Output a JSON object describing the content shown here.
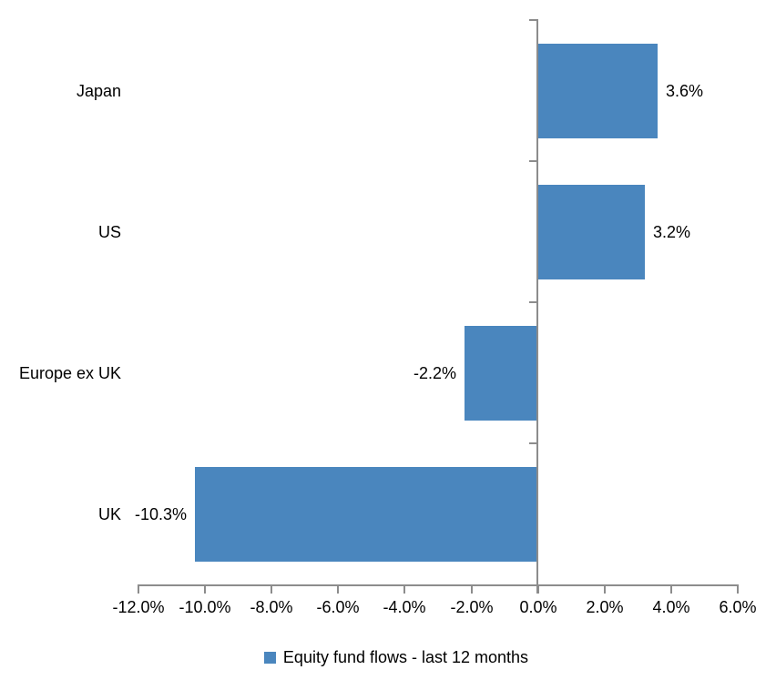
{
  "chart_data": {
    "type": "bar",
    "orientation": "horizontal",
    "title": "",
    "categories": [
      "Japan",
      "US",
      "Europe ex UK",
      "UK"
    ],
    "series": [
      {
        "name": "Equity fund flows - last 12 months",
        "values": [
          3.6,
          3.2,
          -2.2,
          -10.3
        ],
        "value_labels": [
          "3.6%",
          "3.2%",
          "-2.2%",
          "-10.3%"
        ]
      }
    ],
    "xlabel": "",
    "ylabel": "",
    "xlim": [
      -12,
      6
    ],
    "x_tick_step": 2,
    "x_tick_labels": [
      "-12.0%",
      "-10.0%",
      "-8.0%",
      "-6.0%",
      "-4.0%",
      "-2.0%",
      "0.0%",
      "2.0%",
      "4.0%",
      "6.0%"
    ],
    "grid": false,
    "legend_position": "bottom",
    "colors": {
      "bar": "#4A86BE",
      "axis": "#8C8C8C",
      "text": "#000000",
      "background": "#FFFFFF"
    }
  },
  "legend": {
    "label": "Equity fund flows - last 12 months"
  }
}
